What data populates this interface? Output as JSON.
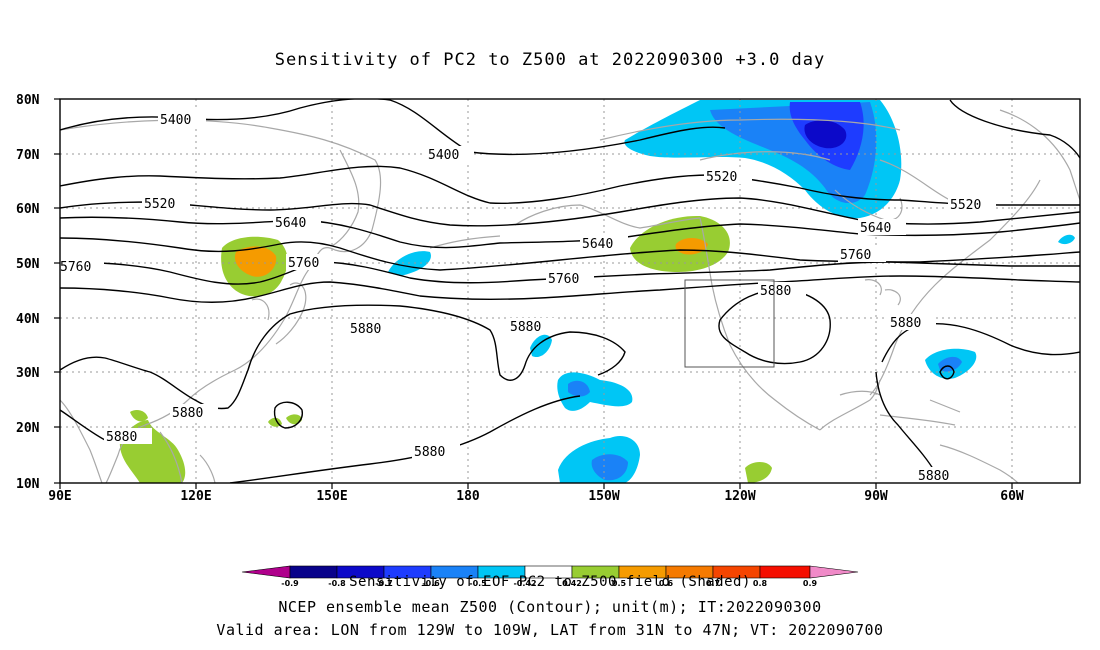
{
  "title": "Sensitivity of PC2 to Z500 at 2022090300 +3.0 day",
  "lat_labels": [
    "80N",
    "70N",
    "60N",
    "50N",
    "40N",
    "30N",
    "20N",
    "10N"
  ],
  "lon_labels": [
    "90E",
    "120E",
    "150E",
    "180",
    "150W",
    "120W",
    "90W",
    "60W"
  ],
  "contour_labels": [
    "5400",
    "5400",
    "5520",
    "5520",
    "5520",
    "5640",
    "5640",
    "5640",
    "5760",
    "5760",
    "5760",
    "5760",
    "5880",
    "5880",
    "5880",
    "5880",
    "5880",
    "5880",
    "5880",
    "5880"
  ],
  "colorbar_ticks": [
    "-0.9",
    "-0.8",
    "-0.7",
    "-0.6",
    "-0.5",
    "-0.42",
    "0.42",
    "0.5",
    "0.6",
    "0.7",
    "0.8",
    "0.9"
  ],
  "colorbar_colors": [
    "#b0008c",
    "#08028a",
    "#0c09c9",
    "#1e3cff",
    "#1a82f7",
    "#00c6f5",
    "#ffffff",
    "#98cd32",
    "#f59b00",
    "#f57a00",
    "#f54500",
    "#f50e00",
    "#f08ac8"
  ],
  "colorbar_caption": "Sensitivity of EOF PC2 to Z500 field (Shaded)",
  "footer_line1": "NCEP ensemble mean Z500 (Contour); unit(m); IT:2022090300",
  "footer_line2": "Valid area: LON from 129W to 109W, LAT from 31N to 47N; VT: 2022090700"
}
